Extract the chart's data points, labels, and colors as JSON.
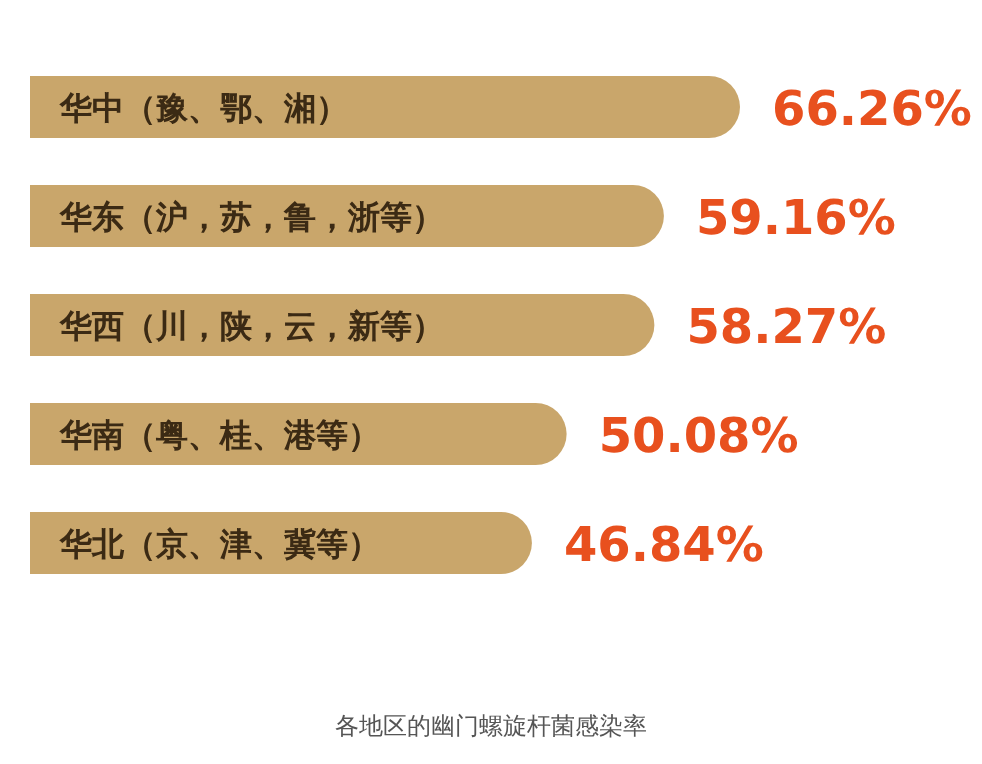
{
  "chart_data": {
    "type": "bar",
    "orientation": "horizontal",
    "title": "各地区的幽门螺旋杆菌感染率",
    "categories": [
      "华中（豫、鄂、湘）",
      "华东（沪，苏，鲁，浙等）",
      "华西（川，陕，云，新等）",
      "华南（粤、桂、港等）",
      "华北（京、津、冀等）"
    ],
    "values": [
      66.26,
      59.16,
      58.27,
      50.08,
      46.84
    ],
    "value_labels": [
      "66.26%",
      "59.16%",
      "58.27%",
      "50.08%",
      "46.84%"
    ],
    "color": "#c9a66b"
  }
}
